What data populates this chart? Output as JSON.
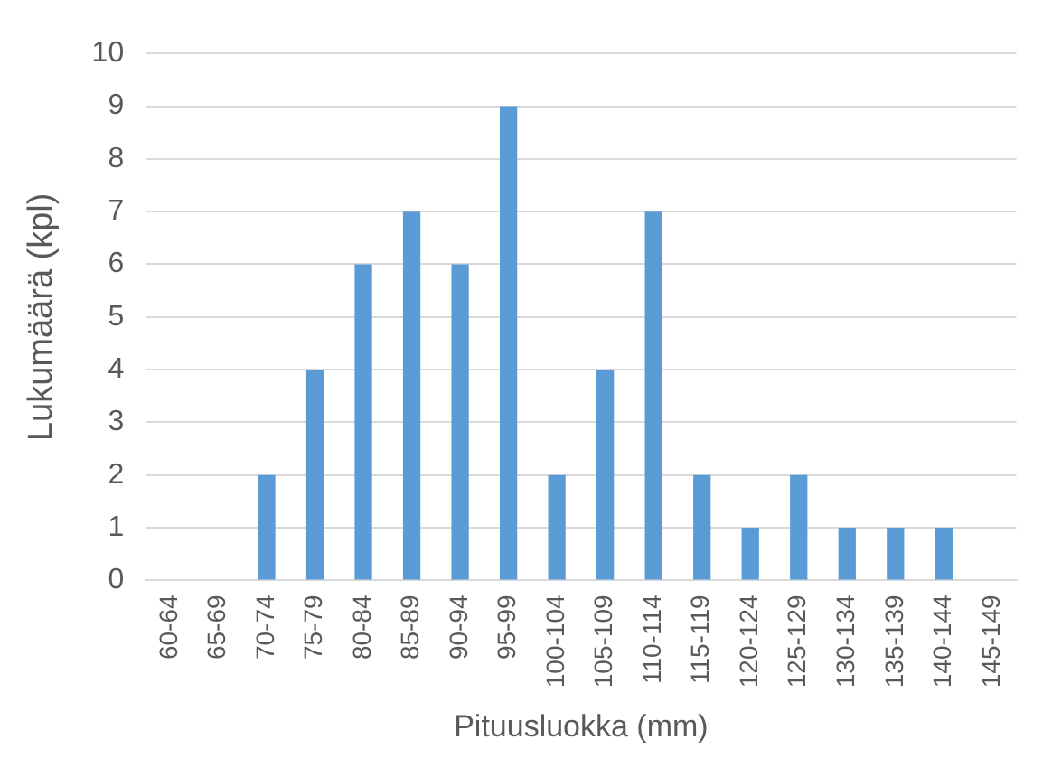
{
  "chart_data": {
    "type": "bar",
    "xlabel": "Pituusluokka (mm)",
    "ylabel": "Lukumäärä (kpl)",
    "categories": [
      "60-64",
      "65-69",
      "70-74",
      "75-79",
      "80-84",
      "85-89",
      "90-94",
      "95-99",
      "100-104",
      "105-109",
      "110-114",
      "115-119",
      "120-124",
      "125-129",
      "130-134",
      "135-139",
      "140-144",
      "145-149"
    ],
    "values": [
      0,
      0,
      2,
      4,
      6,
      7,
      6,
      9,
      2,
      4,
      7,
      2,
      1,
      2,
      1,
      1,
      1,
      0
    ],
    "color": "#5b9bd5",
    "ylim": [
      0,
      10
    ],
    "yticks": [
      0,
      1,
      2,
      3,
      4,
      5,
      6,
      7,
      8,
      9,
      10
    ],
    "grid": "y",
    "legend": false
  }
}
